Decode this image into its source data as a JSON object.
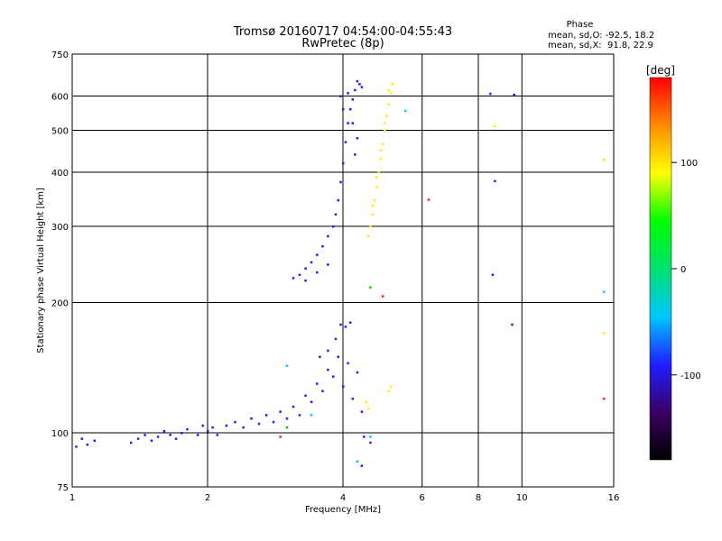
{
  "header": {
    "title_line1": "Tromsø 20160717 04:54:00-04:55:43",
    "title_line2": "RwPretec (8p)"
  },
  "phase_box": {
    "heading": "Phase",
    "line_o": "mean, sd,O: -92.5, 18.2",
    "line_x": "mean, sd,X:  91.8, 22.9"
  },
  "chart_data": {
    "type": "scatter",
    "title": "Tromsø 20160717 04:54:00-04:55:43",
    "subtitle": "RwPretec (8p)",
    "xlabel": "Frequency [MHz]",
    "ylabel": "Stationary phase Virtual Height [km]",
    "x_scale": "log",
    "y_scale": "log",
    "xlim": [
      1,
      16
    ],
    "ylim": [
      75,
      750
    ],
    "x_ticks": [
      1,
      2,
      4,
      6,
      8,
      10,
      16
    ],
    "x_tick_labels": [
      "1",
      "2",
      "4",
      "6",
      "8",
      "10",
      "16"
    ],
    "y_ticks": [
      75,
      100,
      200,
      300,
      400,
      500,
      600,
      750
    ],
    "y_tick_labels": [
      "75",
      "100",
      "200",
      "300",
      "400",
      "500",
      "600",
      "750"
    ],
    "grid": true,
    "colorbar": {
      "label": "[deg]",
      "range": [
        -180,
        180
      ],
      "ticks": [
        -100,
        0,
        100
      ],
      "tick_labels": [
        "-100",
        "0",
        "100"
      ],
      "colors": [
        "#000000",
        "#3a0066",
        "#1e1eff",
        "#00c8ff",
        "#00e070",
        "#00ff00",
        "#ffff00",
        "#ff8c00",
        "#ff0000"
      ]
    },
    "series": [
      {
        "color": "#1e1eff",
        "mean_phase": -92.5,
        "points": [
          [
            1.02,
            93
          ],
          [
            1.05,
            97
          ],
          [
            1.08,
            94
          ],
          [
            1.12,
            96
          ],
          [
            1.35,
            95
          ],
          [
            1.4,
            97
          ],
          [
            1.45,
            99
          ],
          [
            1.5,
            96
          ],
          [
            1.55,
            98
          ],
          [
            1.6,
            101
          ],
          [
            1.65,
            99
          ],
          [
            1.7,
            97
          ],
          [
            1.75,
            100
          ],
          [
            1.8,
            102
          ],
          [
            1.9,
            99
          ],
          [
            1.95,
            104
          ],
          [
            2.0,
            101
          ],
          [
            2.05,
            103
          ],
          [
            2.1,
            99
          ],
          [
            2.2,
            104
          ],
          [
            2.3,
            106
          ],
          [
            2.4,
            103
          ],
          [
            2.5,
            108
          ],
          [
            2.6,
            105
          ],
          [
            2.7,
            110
          ],
          [
            2.8,
            106
          ],
          [
            2.9,
            112
          ],
          [
            3.0,
            108
          ],
          [
            3.1,
            115
          ],
          [
            3.2,
            110
          ],
          [
            3.3,
            122
          ],
          [
            3.4,
            118
          ],
          [
            3.5,
            130
          ],
          [
            3.6,
            125
          ],
          [
            3.7,
            140
          ],
          [
            3.8,
            135
          ],
          [
            3.9,
            150
          ],
          [
            4.0,
            128
          ],
          [
            4.1,
            145
          ],
          [
            4.2,
            120
          ],
          [
            4.3,
            138
          ],
          [
            4.4,
            112
          ],
          [
            3.55,
            150
          ],
          [
            3.7,
            155
          ],
          [
            3.85,
            165
          ],
          [
            3.95,
            178
          ],
          [
            4.05,
            176
          ],
          [
            4.15,
            180
          ],
          [
            3.1,
            228
          ],
          [
            3.2,
            232
          ],
          [
            3.3,
            240
          ],
          [
            3.4,
            248
          ],
          [
            3.5,
            258
          ],
          [
            3.6,
            270
          ],
          [
            3.7,
            285
          ],
          [
            3.8,
            300
          ],
          [
            3.85,
            320
          ],
          [
            3.9,
            345
          ],
          [
            3.95,
            380
          ],
          [
            4.0,
            420
          ],
          [
            4.05,
            470
          ],
          [
            4.1,
            520
          ],
          [
            4.15,
            560
          ],
          [
            4.2,
            590
          ],
          [
            4.25,
            620
          ],
          [
            4.3,
            650
          ],
          [
            4.35,
            640
          ],
          [
            4.4,
            630
          ],
          [
            4.1,
            610
          ],
          [
            3.95,
            600
          ],
          [
            4.0,
            560
          ],
          [
            4.2,
            520
          ],
          [
            4.3,
            480
          ],
          [
            4.25,
            440
          ],
          [
            3.3,
            225
          ],
          [
            3.5,
            235
          ],
          [
            3.7,
            245
          ],
          [
            4.6,
            95
          ],
          [
            4.4,
            84
          ],
          [
            8.5,
            608
          ],
          [
            8.6,
            232
          ],
          [
            8.7,
            382
          ],
          [
            9.6,
            605
          ],
          [
            9.5,
            178
          ],
          [
            4.45,
            98
          ]
        ]
      },
      {
        "color": "#ffee00",
        "mean_phase": 91.8,
        "points": [
          [
            4.55,
            285
          ],
          [
            4.6,
            300
          ],
          [
            4.65,
            320
          ],
          [
            4.7,
            345
          ],
          [
            4.75,
            370
          ],
          [
            4.8,
            400
          ],
          [
            4.85,
            430
          ],
          [
            4.9,
            465
          ],
          [
            4.95,
            500
          ],
          [
            5.0,
            540
          ],
          [
            5.05,
            575
          ],
          [
            5.1,
            610
          ],
          [
            5.15,
            640
          ],
          [
            5.05,
            620
          ],
          [
            4.95,
            520
          ],
          [
            4.85,
            450
          ],
          [
            4.75,
            390
          ],
          [
            4.65,
            335
          ],
          [
            5.1,
            128
          ],
          [
            5.05,
            125
          ],
          [
            4.5,
            118
          ],
          [
            4.55,
            114
          ],
          [
            8.7,
            512
          ],
          [
            15.2,
            428
          ],
          [
            15.2,
            170
          ]
        ]
      },
      {
        "color": "#ff2020",
        "mean_phase": 150,
        "points": [
          [
            6.2,
            346
          ],
          [
            4.9,
            207
          ],
          [
            15.2,
            120
          ],
          [
            2.9,
            98
          ]
        ]
      },
      {
        "color": "#00c8ff",
        "mean_phase": -30,
        "points": [
          [
            5.5,
            555
          ],
          [
            3.0,
            143
          ],
          [
            3.4,
            110
          ],
          [
            4.6,
            98
          ],
          [
            15.2,
            212
          ],
          [
            4.3,
            86
          ]
        ]
      },
      {
        "color": "#00d000",
        "mean_phase": 40,
        "points": [
          [
            4.6,
            217
          ],
          [
            3.0,
            103
          ]
        ]
      }
    ]
  }
}
